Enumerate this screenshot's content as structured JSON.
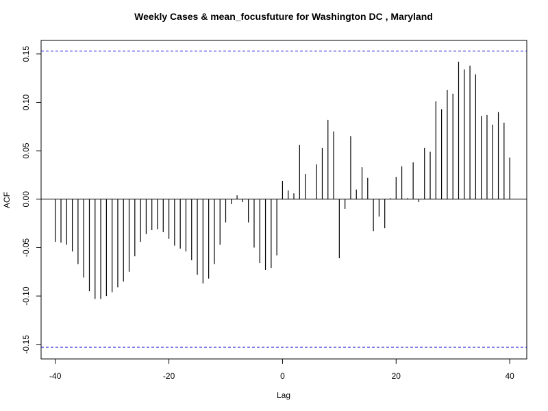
{
  "chart_data": {
    "type": "bar",
    "title": "Weekly Cases & mean_focusfuture for Washington DC , Maryland",
    "xlabel": "Lag",
    "ylabel": "ACF",
    "xlim": [
      -42.5,
      43
    ],
    "ylim": [
      -0.165,
      0.164
    ],
    "x_ticks": [
      -40,
      -20,
      0,
      20,
      40
    ],
    "y_ticks": [
      -0.15,
      -0.1,
      -0.05,
      0.0,
      0.05,
      0.1,
      0.15
    ],
    "x_tick_labels": [
      "-40",
      "-20",
      "0",
      "20",
      "40"
    ],
    "y_tick_labels": [
      "-0.15",
      "-0.10",
      "-0.05",
      "0.00",
      "0.05",
      "0.10",
      "0.15"
    ],
    "confidence_bounds": [
      0.153,
      -0.153
    ],
    "colors": {
      "bars": "#000000",
      "bounds": "#0000CD",
      "zero_line": "#000000"
    },
    "lags": [
      -40,
      -39,
      -38,
      -37,
      -36,
      -35,
      -34,
      -33,
      -32,
      -31,
      -30,
      -29,
      -28,
      -27,
      -26,
      -25,
      -24,
      -23,
      -22,
      -21,
      -20,
      -19,
      -18,
      -17,
      -16,
      -15,
      -14,
      -13,
      -12,
      -11,
      -10,
      -9,
      -8,
      -7,
      -6,
      -5,
      -4,
      -3,
      -2,
      -1,
      0,
      1,
      2,
      3,
      4,
      5,
      6,
      7,
      8,
      9,
      10,
      11,
      12,
      13,
      14,
      15,
      16,
      17,
      18,
      19,
      20,
      21,
      22,
      23,
      24,
      25,
      26,
      27,
      28,
      29,
      30,
      31,
      32,
      33,
      34,
      35,
      36,
      37,
      38,
      39,
      40
    ],
    "values": [
      -0.044,
      -0.045,
      -0.047,
      -0.054,
      -0.067,
      -0.081,
      -0.095,
      -0.103,
      -0.103,
      -0.1,
      -0.096,
      -0.091,
      -0.085,
      -0.075,
      -0.059,
      -0.044,
      -0.036,
      -0.032,
      -0.031,
      -0.034,
      -0.041,
      -0.048,
      -0.051,
      -0.054,
      -0.063,
      -0.078,
      -0.087,
      -0.082,
      -0.067,
      -0.047,
      -0.024,
      -0.005,
      0.004,
      -0.003,
      -0.024,
      -0.05,
      -0.066,
      -0.073,
      -0.071,
      -0.058,
      0.019,
      0.009,
      0.006,
      0.056,
      0.026,
      0.0,
      0.036,
      0.053,
      0.082,
      0.07,
      -0.061,
      -0.01,
      0.065,
      0.01,
      0.033,
      0.022,
      -0.033,
      -0.018,
      -0.03,
      0.001,
      0.023,
      0.034,
      0.001,
      0.038,
      -0.003,
      0.053,
      0.049,
      0.101,
      0.093,
      0.113,
      0.109,
      0.142,
      0.134,
      0.138,
      0.129,
      0.086,
      0.087,
      0.077,
      0.09,
      0.079,
      0.043
    ]
  }
}
